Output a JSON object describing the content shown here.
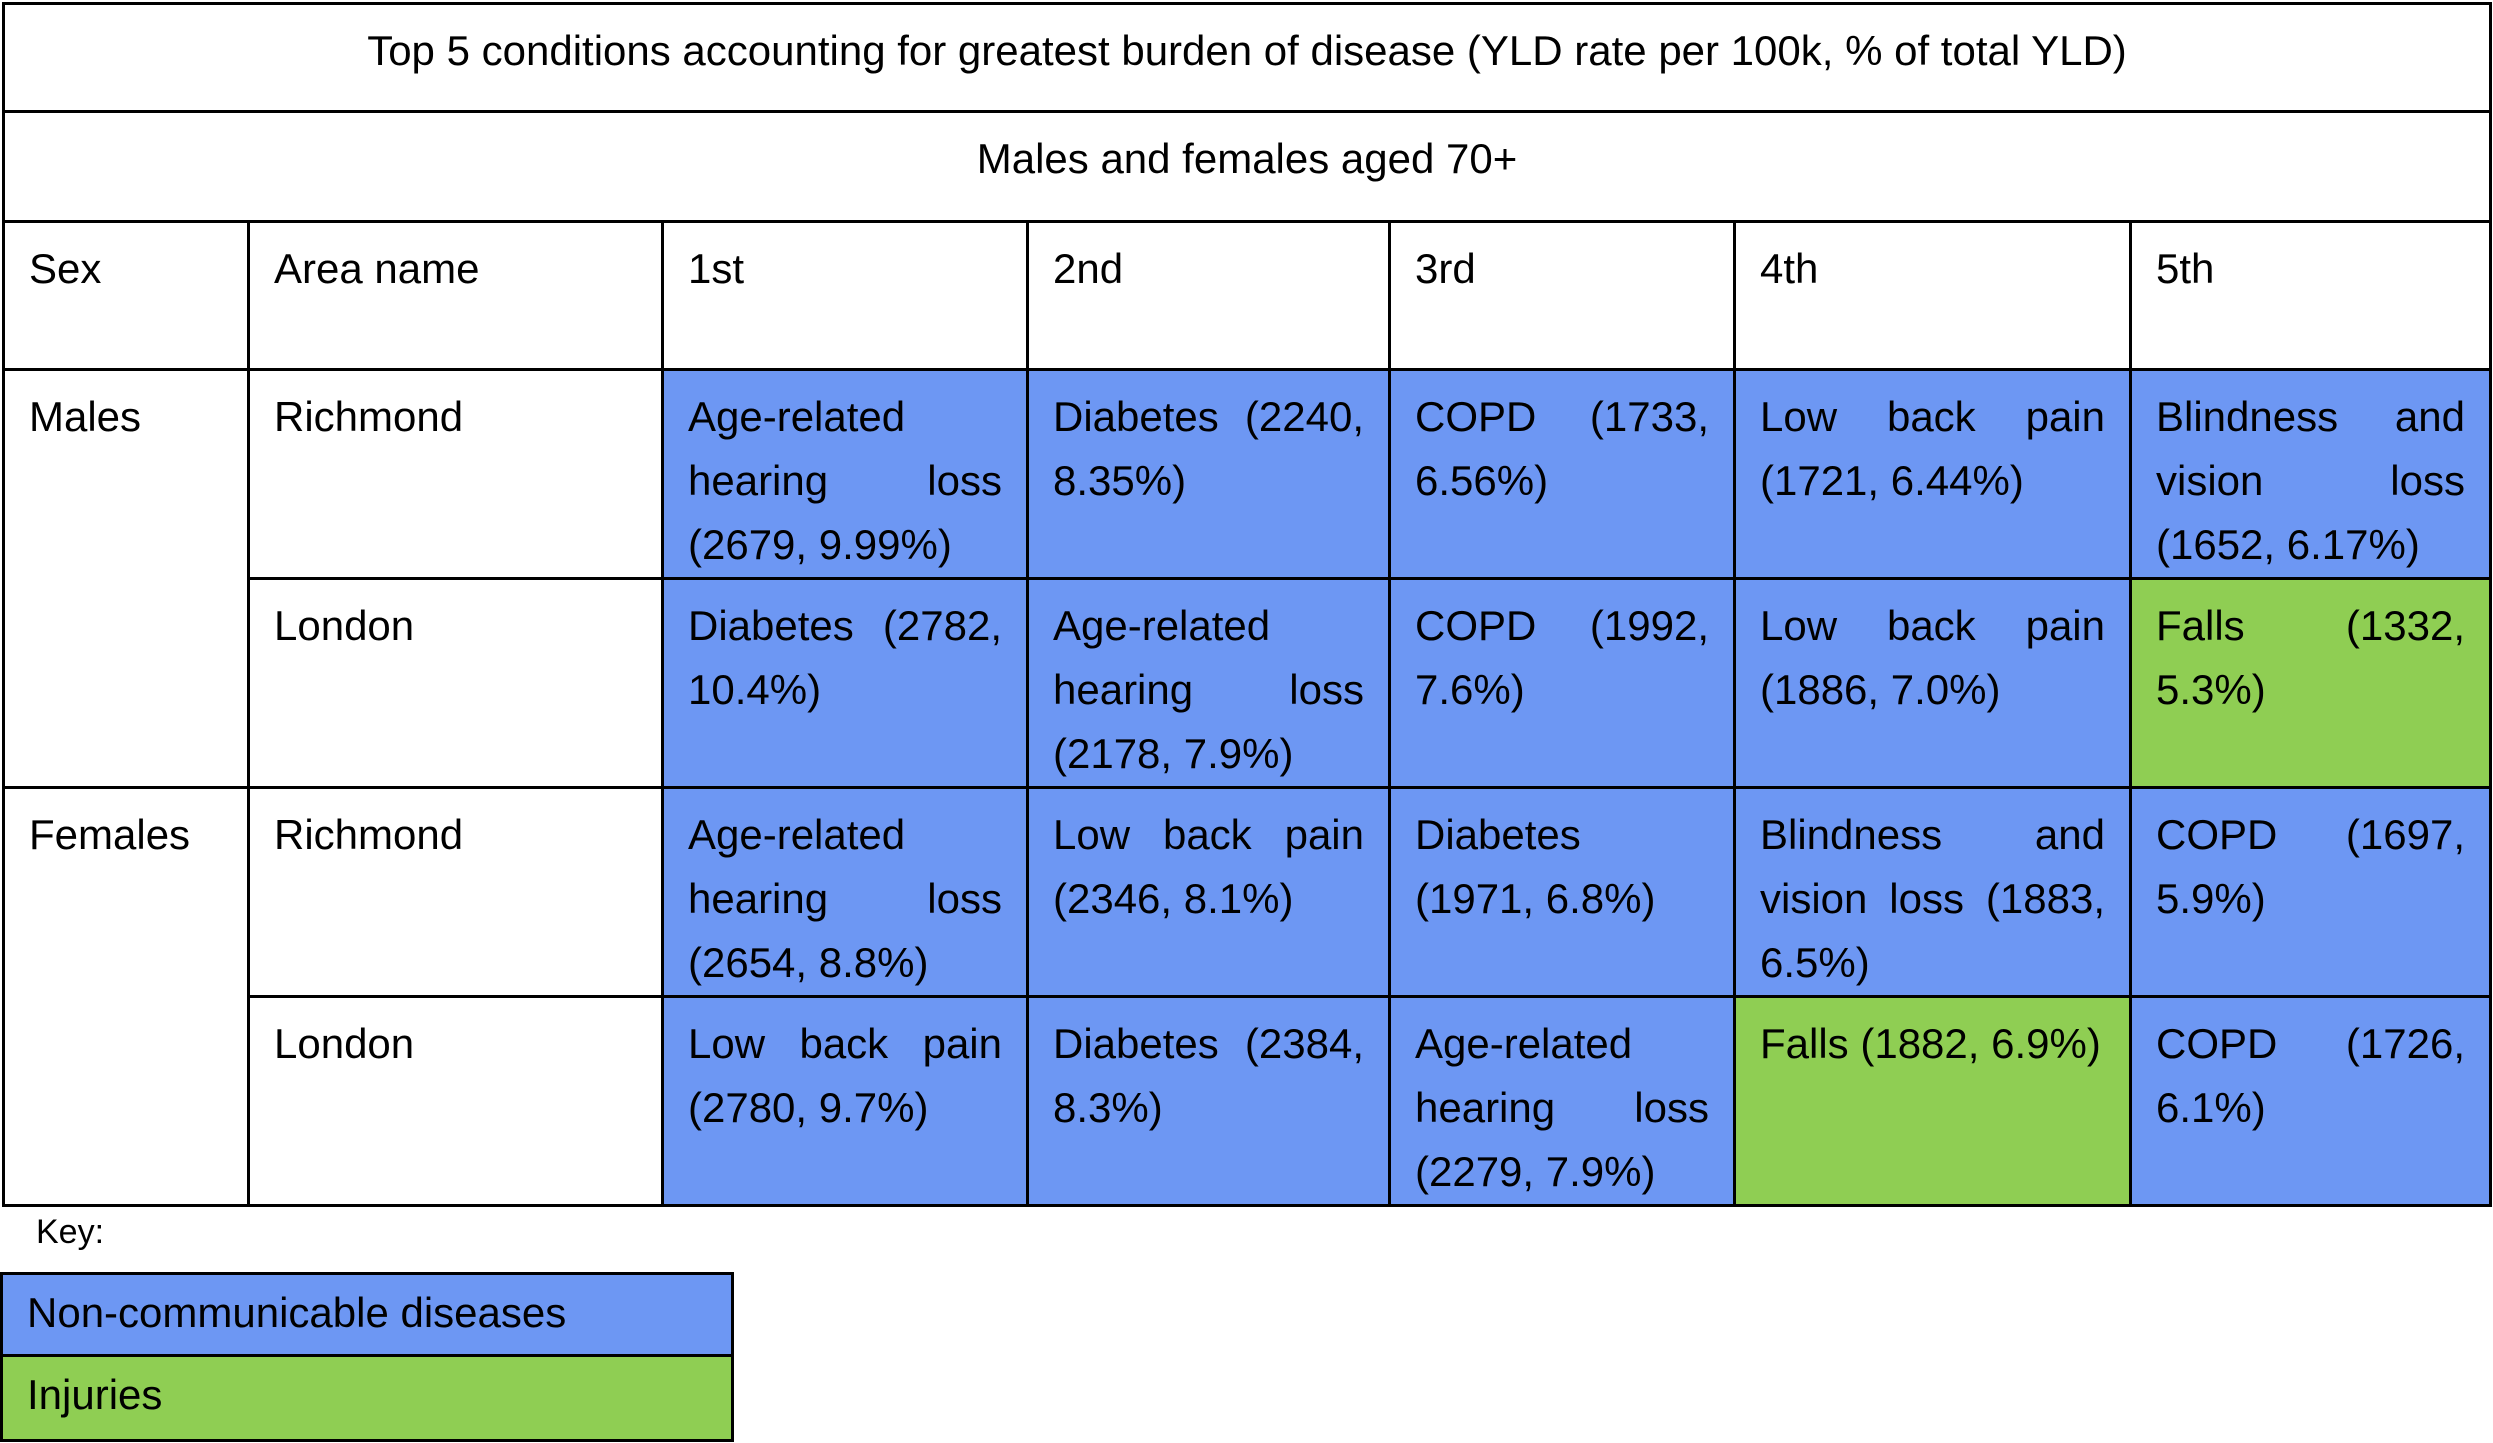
{
  "table": {
    "title": "Top 5 conditions accounting for greatest burden of disease (YLD rate per 100k, % of total YLD)",
    "subtitle": "Males and females aged 70+",
    "headers": [
      "Sex",
      "Area name",
      "1st",
      "2nd",
      "3rd",
      "4th",
      "5th"
    ],
    "rows": [
      {
        "sex": "Males",
        "area": "Richmond",
        "cells": [
          {
            "text": "Age-related hearing loss (2679, 9.99%)",
            "category": "Non-communicable diseases"
          },
          {
            "text": "Diabetes (2240, 8.35%)",
            "category": "Non-communicable diseases"
          },
          {
            "text": "COPD (1733, 6.56%)",
            "category": "Non-communicable diseases"
          },
          {
            "text": "Low back pain (1721, 6.44%)",
            "category": "Non-communicable diseases"
          },
          {
            "text": "Blindness and vision loss (1652, 6.17%)",
            "category": "Non-communicable diseases"
          }
        ]
      },
      {
        "sex": "",
        "area": "London",
        "cells": [
          {
            "text": "Diabetes (2782, 10.4%)",
            "category": "Non-communicable diseases"
          },
          {
            "text": "Age-related hearing loss (2178, 7.9%)",
            "category": "Non-communicable diseases"
          },
          {
            "text": "COPD (1992, 7.6%)",
            "category": "Non-communicable diseases"
          },
          {
            "text": "Low back pain (1886, 7.0%)",
            "category": "Non-communicable diseases"
          },
          {
            "text": "Falls (1332, 5.3%)",
            "category": "Injuries"
          }
        ]
      },
      {
        "sex": "Females",
        "area": "Richmond",
        "cells": [
          {
            "text": "Age-related hearing loss (2654, 8.8%)",
            "category": "Non-communicable diseases"
          },
          {
            "text": "Low back pain (2346, 8.1%)",
            "category": "Non-communicable diseases"
          },
          {
            "text": "Diabetes (1971, 6.8%)",
            "category": "Non-communicable diseases"
          },
          {
            "text": "Blindness and vision loss (1883, 6.5%)",
            "category": "Non-communicable diseases"
          },
          {
            "text": "COPD (1697, 5.9%)",
            "category": "Non-communicable diseases"
          }
        ]
      },
      {
        "sex": "",
        "area": "London",
        "cells": [
          {
            "text": "Low back pain (2780, 9.7%)",
            "category": "Non-communicable diseases"
          },
          {
            "text": "Diabetes (2384, 8.3%)",
            "category": "Non-communicable diseases"
          },
          {
            "text": "Age-related hearing loss (2279, 7.9%)",
            "category": "Non-communicable diseases"
          },
          {
            "text": "Falls (1882, 6.9%)",
            "category": "Injuries"
          },
          {
            "text": "COPD (1726, 6.1%)",
            "category": "Non-communicable diseases"
          }
        ]
      }
    ]
  },
  "key": {
    "label": "Key:",
    "items": [
      {
        "label": "Non-communicable diseases",
        "color": "#6d97f3"
      },
      {
        "label": "Injuries",
        "color": "#8fce53"
      }
    ]
  }
}
